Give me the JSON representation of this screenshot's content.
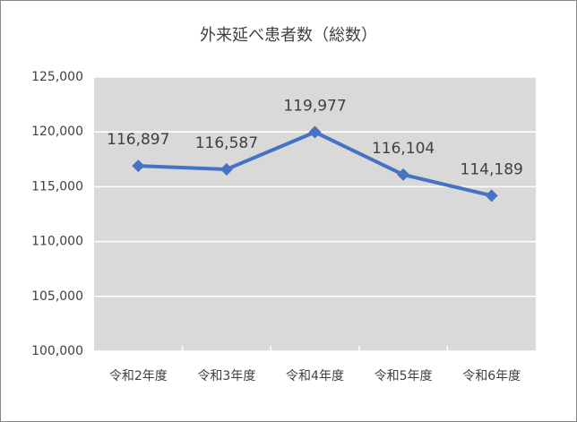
{
  "chart_data": {
    "type": "line",
    "title": "外来延べ患者数（総数）",
    "categories": [
      "令和2年度",
      "令和3年度",
      "令和4年度",
      "令和5年度",
      "令和6年度"
    ],
    "series": [
      {
        "name": "外来延べ患者数",
        "color": "#4472c4",
        "values": [
          116897,
          116587,
          119977,
          116104,
          114189
        ],
        "value_labels": [
          "116,897",
          "116,587",
          "119,977",
          "116,104",
          "114,189"
        ]
      }
    ],
    "ylim": [
      100000,
      125000
    ],
    "yticks": [
      {
        "value": 100000,
        "label": "100,000"
      },
      {
        "value": 105000,
        "label": "105,000"
      },
      {
        "value": 110000,
        "label": "110,000"
      },
      {
        "value": 115000,
        "label": "115,000"
      },
      {
        "value": 120000,
        "label": "120,000"
      },
      {
        "value": 125000,
        "label": "125,000"
      }
    ],
    "grid": true
  }
}
